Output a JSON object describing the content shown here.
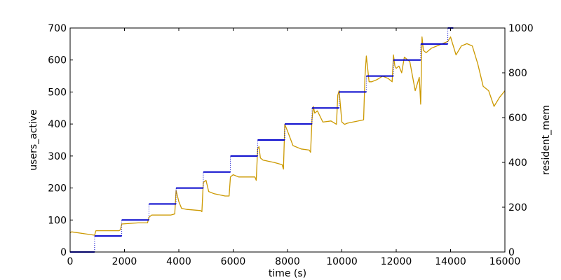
{
  "chart_data": {
    "type": "line",
    "xlabel": "time (s)",
    "ylabel_left": "users_active",
    "ylabel_right": "resident_mem",
    "xlim": [
      0,
      16000
    ],
    "ylim_left": [
      0,
      700
    ],
    "ylim_right": [
      0,
      1000
    ],
    "x_ticks": [
      "0",
      "2000",
      "4000",
      "6000",
      "8000",
      "10000",
      "12000",
      "14000",
      "16000"
    ],
    "x_tick_values": [
      0,
      2000,
      4000,
      6000,
      8000,
      10000,
      12000,
      14000,
      16000
    ],
    "y_left_ticks": [
      "0",
      "100",
      "200",
      "300",
      "400",
      "500",
      "600",
      "700"
    ],
    "y_left_tick_values": [
      0,
      100,
      200,
      300,
      400,
      500,
      600,
      700
    ],
    "y_right_ticks": [
      "0",
      "200",
      "400",
      "600",
      "800",
      "1000"
    ],
    "y_right_tick_values": [
      0,
      200,
      400,
      600,
      800,
      1000
    ],
    "grid": false,
    "colors": {
      "users_active": "#0000cc",
      "resident_mem": "#cc9900"
    },
    "series": [
      {
        "axis": "left",
        "style": "steps",
        "color": "#0000cc",
        "segments": [
          {
            "x": [
              0,
              900
            ],
            "y": 0
          },
          {
            "x": [
              900,
              1900
            ],
            "y": 50
          },
          {
            "x": [
              1900,
              2900
            ],
            "y": 100
          },
          {
            "x": [
              2900,
              3900
            ],
            "y": 150
          },
          {
            "x": [
              3900,
              4900
            ],
            "y": 200
          },
          {
            "x": [
              4900,
              5900
            ],
            "y": 250
          },
          {
            "x": [
              5900,
              6900
            ],
            "y": 300
          },
          {
            "x": [
              6900,
              7900
            ],
            "y": 350
          },
          {
            "x": [
              7900,
              8900
            ],
            "y": 400
          },
          {
            "x": [
              8900,
              9900
            ],
            "y": 450
          },
          {
            "x": [
              9900,
              10900
            ],
            "y": 500
          },
          {
            "x": [
              10900,
              11900
            ],
            "y": 550
          },
          {
            "x": [
              11900,
              12900
            ],
            "y": 600
          },
          {
            "x": [
              12900,
              13900
            ],
            "y": 650
          },
          {
            "x": [
              13900,
              14100
            ],
            "y": 700
          }
        ]
      },
      {
        "axis": "right",
        "style": "line",
        "color": "#cc9900",
        "x": [
          0,
          50,
          900,
          950,
          1800,
          1850,
          1900,
          2500,
          2850,
          2900,
          3000,
          3700,
          3850,
          3900,
          4000,
          4100,
          4300,
          4800,
          4850,
          4900,
          5000,
          5100,
          5300,
          5700,
          5850,
          5900,
          6000,
          6200,
          6800,
          6850,
          6900,
          6950,
          7000,
          7100,
          7500,
          7800,
          7850,
          7900,
          8000,
          8200,
          8500,
          8800,
          8850,
          8900,
          8950,
          9000,
          9100,
          9300,
          9600,
          9800,
          9850,
          9900,
          10000,
          10100,
          10200,
          10400,
          10800,
          10850,
          10900,
          10950,
          11000,
          11100,
          11300,
          11500,
          11700,
          11850,
          11900,
          11950,
          12000,
          12100,
          12200,
          12300,
          12500,
          12700,
          12800,
          12850,
          12900,
          12950,
          13000,
          13100,
          13300,
          13500,
          13700,
          13900,
          14000,
          14200,
          14400,
          14600,
          14800,
          15000,
          15200,
          15400,
          15600,
          15800,
          16000
        ],
        "y": [
          85,
          90,
          75,
          95,
          95,
          100,
          125,
          130,
          130,
          155,
          165,
          165,
          170,
          275,
          225,
          195,
          190,
          185,
          180,
          310,
          320,
          270,
          260,
          250,
          250,
          335,
          345,
          335,
          335,
          320,
          460,
          470,
          420,
          410,
          400,
          390,
          370,
          570,
          540,
          475,
          460,
          455,
          445,
          590,
          650,
          620,
          630,
          580,
          585,
          570,
          700,
          720,
          580,
          570,
          575,
          580,
          590,
          780,
          875,
          820,
          760,
          760,
          770,
          785,
          775,
          760,
          880,
          830,
          820,
          830,
          800,
          870,
          850,
          720,
          760,
          780,
          660,
          960,
          900,
          890,
          910,
          920,
          930,
          940,
          960,
          880,
          920,
          930,
          920,
          840,
          740,
          720,
          650,
          690,
          720
        ]
      }
    ]
  }
}
